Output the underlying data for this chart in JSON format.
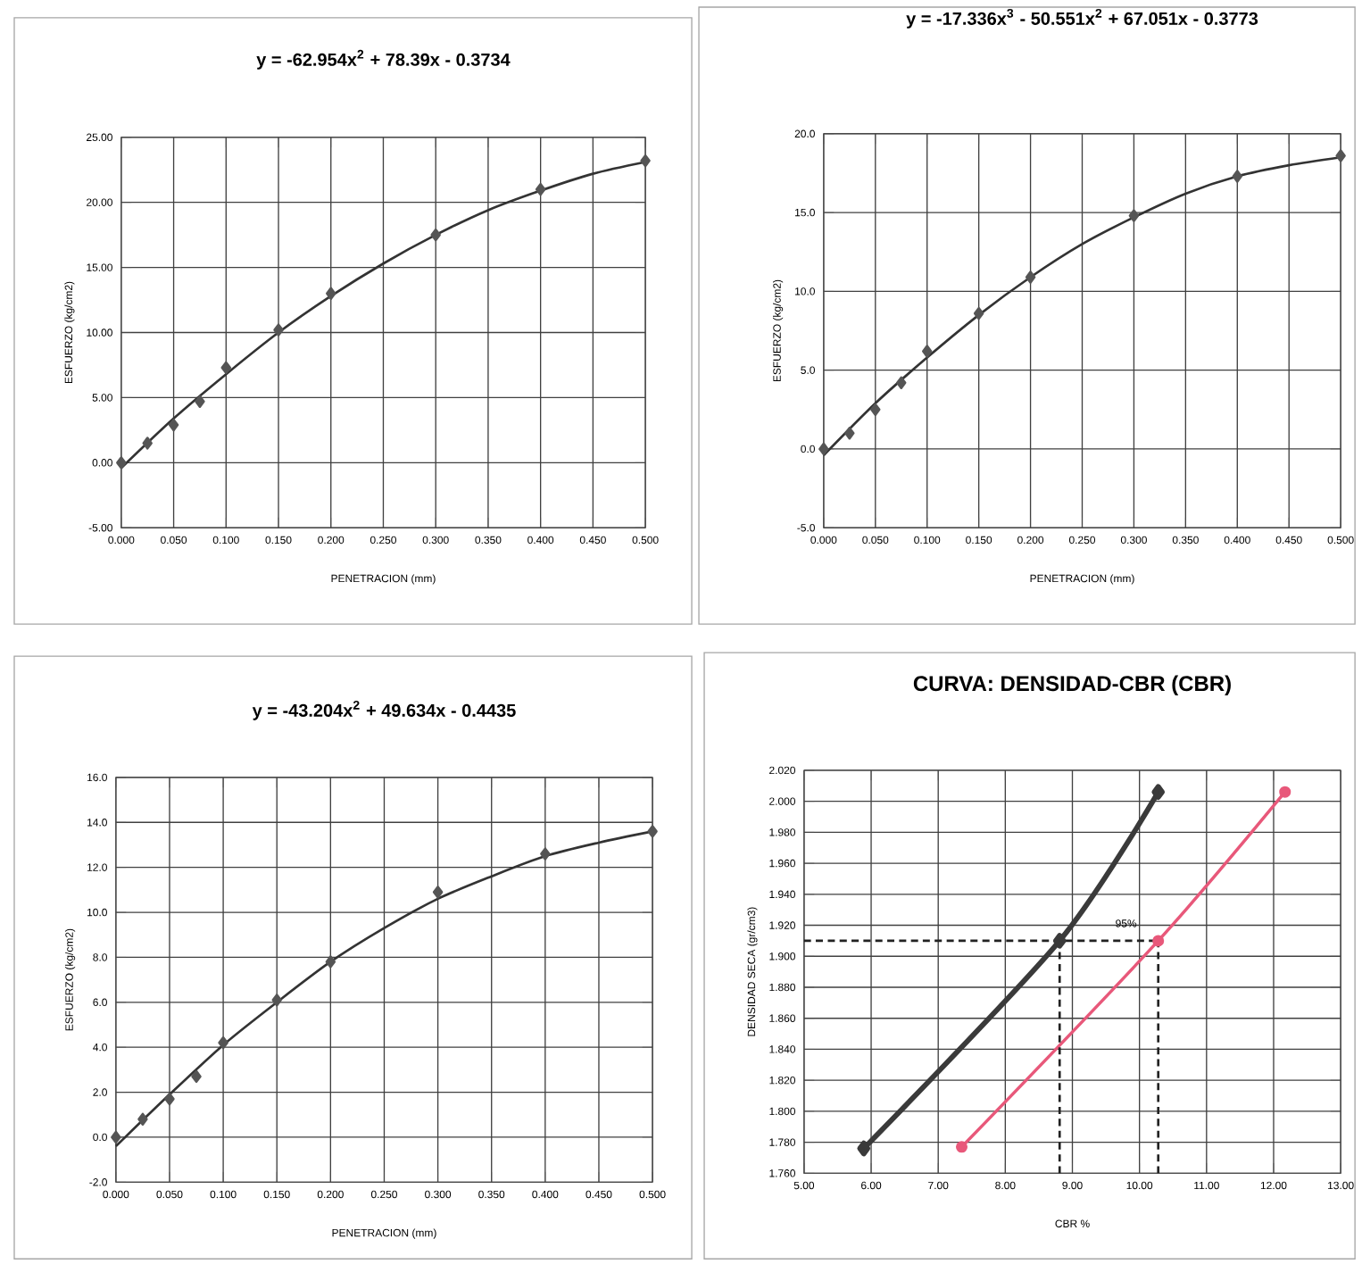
{
  "chart_data": [
    {
      "type": "scatter",
      "title": "y = -62.954x$^{2}$ + 78.39x - 0.3734",
      "xlabel": "PENETRACION (mm)",
      "ylabel": "ESFUERZO (kg/cm2)",
      "xlim": [
        0,
        0.5
      ],
      "ylim": [
        -5,
        25
      ],
      "xticks": [
        {
          "value": 0,
          "label": "0.000"
        },
        {
          "value": 0.05,
          "label": "0.050"
        },
        {
          "value": 0.1,
          "label": "0.100"
        },
        {
          "value": 0.15,
          "label": "0.150"
        },
        {
          "value": 0.2,
          "label": "0.200"
        },
        {
          "value": 0.25,
          "label": "0.250"
        },
        {
          "value": 0.3,
          "label": "0.300"
        },
        {
          "value": 0.35,
          "label": "0.350"
        },
        {
          "value": 0.4,
          "label": "0.400"
        },
        {
          "value": 0.45,
          "label": "0.450"
        },
        {
          "value": 0.5,
          "label": "0.500"
        }
      ],
      "yticks": [
        {
          "value": -5,
          "label": "-5.00"
        },
        {
          "value": 0,
          "label": "0.00"
        },
        {
          "value": 5,
          "label": "5.00"
        },
        {
          "value": 10,
          "label": "10.00"
        },
        {
          "value": 15,
          "label": "15.00"
        },
        {
          "value": 20,
          "label": "20.00"
        },
        {
          "value": 25,
          "label": "25.00"
        }
      ],
      "grid": true,
      "marker": "diamond",
      "x": [
        0,
        0.025,
        0.05,
        0.075,
        0.1,
        0.15,
        0.2,
        0.3,
        0.4,
        0.5
      ],
      "series": [
        {
          "color": "#555555",
          "values": [
            0,
            1.5,
            2.9,
            4.7,
            7.3,
            10.2,
            13.0,
            17.5,
            21.0,
            23.2
          ]
        },
        {
          "type": "line",
          "marker": "none",
          "color": "#333333",
          "x": [
            0,
            0.05,
            0.1,
            0.15,
            0.2,
            0.25,
            0.3,
            0.35,
            0.4,
            0.45,
            0.5
          ],
          "values": [
            -0.4,
            3.4,
            6.8,
            10.0,
            12.8,
            15.3,
            17.5,
            19.4,
            20.9,
            22.2,
            23.1
          ]
        }
      ]
    },
    {
      "type": "scatter",
      "title": "y = -17.336x$^{3}$ - 50.551x$^{2}$ + 67.051x - 0.3773",
      "xlabel": "PENETRACION (mm)",
      "ylabel": "ESFUERZO (kg/cm2)",
      "xlim": [
        0,
        0.5
      ],
      "ylim": [
        -5,
        20
      ],
      "xticks": [
        {
          "value": 0,
          "label": "0.000"
        },
        {
          "value": 0.05,
          "label": "0.050"
        },
        {
          "value": 0.1,
          "label": "0.100"
        },
        {
          "value": 0.15,
          "label": "0.150"
        },
        {
          "value": 0.2,
          "label": "0.200"
        },
        {
          "value": 0.25,
          "label": "0.250"
        },
        {
          "value": 0.3,
          "label": "0.300"
        },
        {
          "value": 0.35,
          "label": "0.350"
        },
        {
          "value": 0.4,
          "label": "0.400"
        },
        {
          "value": 0.45,
          "label": "0.450"
        },
        {
          "value": 0.5,
          "label": "0.500"
        }
      ],
      "yticks": [
        {
          "value": -5,
          "label": "-5.0"
        },
        {
          "value": 0,
          "label": "0.0"
        },
        {
          "value": 5,
          "label": "5.0"
        },
        {
          "value": 10,
          "label": "10.0"
        },
        {
          "value": 15,
          "label": "15.0"
        },
        {
          "value": 20,
          "label": "20.0"
        }
      ],
      "grid": true,
      "marker": "diamond",
      "x": [
        0,
        0.025,
        0.05,
        0.075,
        0.1,
        0.15,
        0.2,
        0.3,
        0.4,
        0.5
      ],
      "series": [
        {
          "color": "#555555",
          "values": [
            0,
            1.0,
            2.5,
            4.2,
            6.2,
            8.6,
            10.9,
            14.8,
            17.3,
            18.6
          ]
        },
        {
          "type": "line",
          "marker": "none",
          "color": "#333333",
          "x": [
            0,
            0.05,
            0.1,
            0.15,
            0.2,
            0.25,
            0.3,
            0.35,
            0.4,
            0.45,
            0.5
          ],
          "values": [
            -0.4,
            2.9,
            5.8,
            8.5,
            10.9,
            13.0,
            14.7,
            16.2,
            17.3,
            18.0,
            18.5
          ]
        }
      ]
    },
    {
      "type": "scatter",
      "title": "y = -43.204x$^{2}$ + 49.634x - 0.4435",
      "xlabel": "PENETRACION (mm)",
      "ylabel": "ESFUERZO (kg/cm2)",
      "xlim": [
        0,
        0.5
      ],
      "ylim": [
        -2,
        16
      ],
      "xticks": [
        {
          "value": 0,
          "label": "0.000"
        },
        {
          "value": 0.05,
          "label": "0.050"
        },
        {
          "value": 0.1,
          "label": "0.100"
        },
        {
          "value": 0.15,
          "label": "0.150"
        },
        {
          "value": 0.2,
          "label": "0.200"
        },
        {
          "value": 0.25,
          "label": "0.250"
        },
        {
          "value": 0.3,
          "label": "0.300"
        },
        {
          "value": 0.35,
          "label": "0.350"
        },
        {
          "value": 0.4,
          "label": "0.400"
        },
        {
          "value": 0.45,
          "label": "0.450"
        },
        {
          "value": 0.5,
          "label": "0.500"
        }
      ],
      "yticks": [
        {
          "value": -2,
          "label": "-2.0"
        },
        {
          "value": 0,
          "label": "0.0"
        },
        {
          "value": 2,
          "label": "2.0"
        },
        {
          "value": 4,
          "label": "4.0"
        },
        {
          "value": 6,
          "label": "6.0"
        },
        {
          "value": 8,
          "label": "8.0"
        },
        {
          "value": 10,
          "label": "10.0"
        },
        {
          "value": 12,
          "label": "12.0"
        },
        {
          "value": 14,
          "label": "14.0"
        },
        {
          "value": 16,
          "label": "16.0"
        }
      ],
      "grid": true,
      "marker": "diamond",
      "x": [
        0,
        0.025,
        0.05,
        0.075,
        0.1,
        0.15,
        0.2,
        0.3,
        0.4,
        0.5
      ],
      "series": [
        {
          "color": "#555555",
          "values": [
            0,
            0.8,
            1.7,
            2.7,
            4.2,
            6.1,
            7.8,
            10.9,
            12.6,
            13.6
          ]
        },
        {
          "type": "line",
          "marker": "none",
          "color": "#333333",
          "x": [
            0,
            0.05,
            0.1,
            0.15,
            0.2,
            0.25,
            0.3,
            0.35,
            0.4,
            0.45,
            0.5
          ],
          "values": [
            -0.4,
            1.9,
            4.1,
            6.0,
            7.8,
            9.3,
            10.6,
            11.6,
            12.5,
            13.1,
            13.6
          ]
        }
      ]
    },
    {
      "type": "line",
      "title": "CURVA:  DENSIDAD-CBR (CBR)",
      "xlabel": "CBR %",
      "ylabel": "DENSIDAD SECA (gr/cm3)",
      "xlim": [
        5,
        13
      ],
      "ylim": [
        1.76,
        2.02
      ],
      "xticks": [
        {
          "value": 5,
          "label": "5.00"
        },
        {
          "value": 6,
          "label": "6.00"
        },
        {
          "value": 7,
          "label": "7.00"
        },
        {
          "value": 8,
          "label": "8.00"
        },
        {
          "value": 9,
          "label": "9.00"
        },
        {
          "value": 10,
          "label": "10.00"
        },
        {
          "value": 11,
          "label": "11.00"
        },
        {
          "value": 12,
          "label": "12.00"
        },
        {
          "value": 13,
          "label": "13.00"
        }
      ],
      "yticks": [
        {
          "value": 1.76,
          "label": "1.760"
        },
        {
          "value": 1.78,
          "label": "1.780"
        },
        {
          "value": 1.8,
          "label": "1.800"
        },
        {
          "value": 1.82,
          "label": "1.820"
        },
        {
          "value": 1.84,
          "label": "1.840"
        },
        {
          "value": 1.86,
          "label": "1.860"
        },
        {
          "value": 1.88,
          "label": "1.880"
        },
        {
          "value": 1.9,
          "label": "1.900"
        },
        {
          "value": 1.92,
          "label": "1.920"
        },
        {
          "value": 1.94,
          "label": "1.940"
        },
        {
          "value": 1.96,
          "label": "1.960"
        },
        {
          "value": 1.98,
          "label": "1.980"
        },
        {
          "value": 2.0,
          "label": "2.000"
        },
        {
          "value": 2.02,
          "label": "2.020"
        }
      ],
      "grid": true,
      "annotations": [
        "95%"
      ],
      "series": [
        {
          "color": "#3a3a3a",
          "marker": "diamond",
          "x": [
            5.89,
            8.81,
            10.28
          ],
          "values": [
            1.776,
            1.91,
            2.006
          ]
        },
        {
          "color": "#e8587a",
          "marker": "circle",
          "x": [
            7.35,
            10.28,
            12.17
          ],
          "values": [
            1.777,
            1.91,
            2.006
          ]
        },
        {
          "color": "#222222",
          "marker": "none",
          "line_style": "dashed",
          "x": [
            5,
            10.28
          ],
          "values": [
            1.91,
            1.91
          ]
        },
        {
          "color": "#222222",
          "marker": "none",
          "line_style": "dashed",
          "x": [
            8.81,
            8.81
          ],
          "values": [
            1.76,
            1.91
          ]
        },
        {
          "color": "#222222",
          "marker": "none",
          "line_style": "dashed",
          "x": [
            10.28,
            10.28
          ],
          "values": [
            1.76,
            1.91
          ]
        }
      ]
    }
  ]
}
